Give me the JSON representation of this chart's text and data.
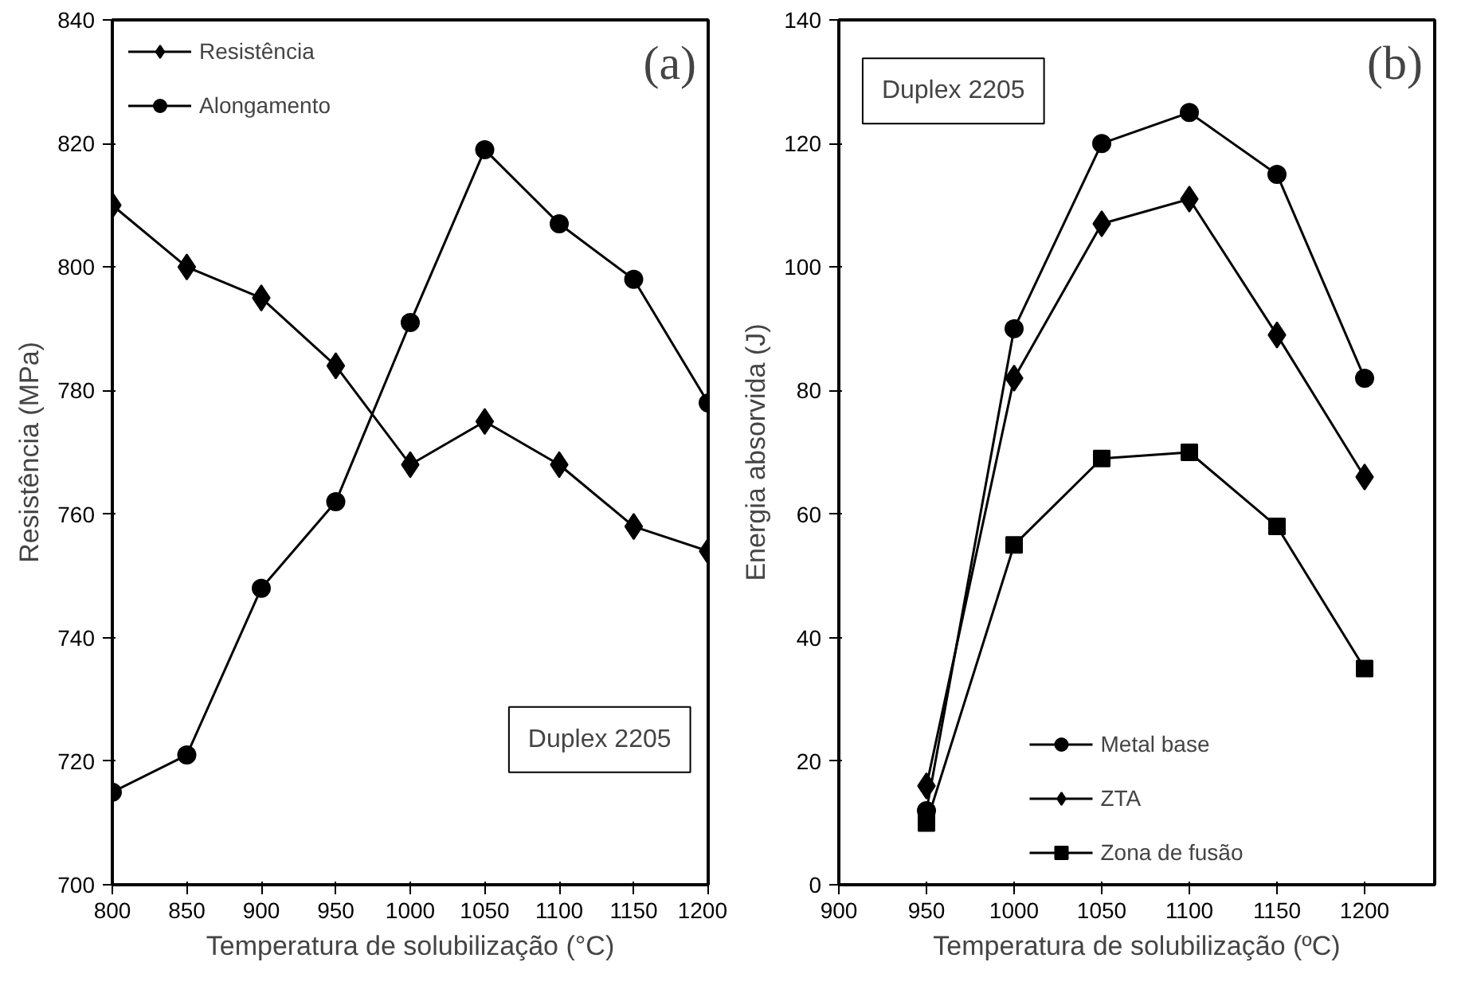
{
  "chart_data": [
    {
      "type": "line",
      "xlabel": "Temperatura de solubilização (°C)",
      "ylabel": "Resistência (MPa)",
      "x": [
        800,
        850,
        900,
        950,
        1000,
        1050,
        1100,
        1150,
        1200
      ],
      "series": [
        {
          "name": "Resistência",
          "color": "#000000",
          "marker": "diamond",
          "values": [
            810,
            800,
            795,
            784,
            768,
            775,
            768,
            758,
            754
          ]
        },
        {
          "name": "Alongamento",
          "color": "#000000",
          "marker": "circle",
          "values": [
            715,
            721,
            748,
            762,
            791,
            819,
            807,
            798,
            778
          ]
        }
      ],
      "xlim": [
        800,
        1200
      ],
      "xticks": [
        800,
        850,
        900,
        950,
        1000,
        1050,
        1100,
        1150,
        1200
      ],
      "ylim": [
        700,
        840
      ],
      "yticks": [
        700,
        720,
        740,
        760,
        780,
        800,
        820,
        840
      ],
      "legend": "top left",
      "grid": false,
      "annotations": [
        "(a)",
        "Duplex 2205"
      ]
    },
    {
      "type": "line",
      "xlabel": "Temperatura de solubilização (ºC)",
      "ylabel": "Energia absorvida (J)",
      "x": [
        950,
        1000,
        1050,
        1100,
        1150,
        1200
      ],
      "series": [
        {
          "name": "Metal base",
          "color": "#000000",
          "marker": "circle",
          "values": [
            12,
            90,
            120,
            125,
            115,
            82
          ]
        },
        {
          "name": "ZTA",
          "color": "#000000",
          "marker": "diamond",
          "values": [
            16,
            82,
            107,
            111,
            89,
            66
          ]
        },
        {
          "name": "Zona de fusão",
          "color": "#000000",
          "marker": "square",
          "values": [
            10,
            55,
            69,
            70,
            58,
            35
          ]
        }
      ],
      "xlim": [
        900,
        1240
      ],
      "xticks": [
        900,
        950,
        1000,
        1050,
        1100,
        1150,
        1200
      ],
      "ylim": [
        0,
        140
      ],
      "yticks": [
        0,
        20,
        40,
        60,
        80,
        100,
        120,
        140
      ],
      "legend": "bottom",
      "grid": false,
      "annotations": [
        "(b)",
        "Duplex 2205"
      ]
    }
  ]
}
